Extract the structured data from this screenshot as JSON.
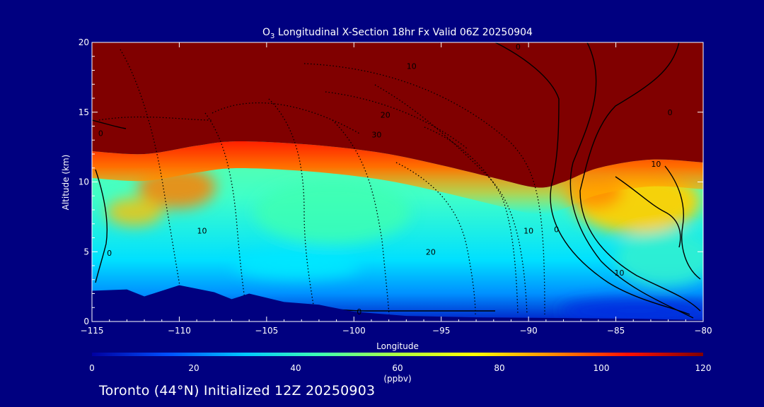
{
  "chart_data": {
    "type": "heatmap",
    "title": {
      "species": "O",
      "subscript": "3",
      "text": " Longitudinal X-Section 18hr  Fx Valid 06Z 20250904"
    },
    "xlabel": "Longitude",
    "ylabel": "Altitude (km)",
    "xlim": [
      -115,
      -80
    ],
    "ylim": [
      0,
      20
    ],
    "x_ticks": [
      -115,
      -110,
      -105,
      -100,
      -95,
      -90,
      -85,
      -80
    ],
    "x_tick_labels": [
      "−115",
      "−110",
      "−105",
      "−100",
      "−95",
      "−90",
      "−85",
      "−80"
    ],
    "y_ticks": [
      0,
      5,
      10,
      15,
      20
    ],
    "y_tick_labels": [
      "0",
      "5",
      "10",
      "15",
      "20"
    ],
    "colorbar": {
      "label": "(ppbv)",
      "min": 0,
      "max": 120,
      "ticks": [
        0,
        20,
        40,
        60,
        80,
        100,
        120
      ],
      "tick_labels": [
        "0",
        "20",
        "40",
        "60",
        "80",
        "100",
        "120"
      ],
      "colors": [
        "#0000a0",
        "#0050ff",
        "#00c8ff",
        "#40ffb0",
        "#b0ff40",
        "#ffff00",
        "#ff9000",
        "#ff1000",
        "#800000"
      ]
    },
    "tropopause_altitude_km": [
      {
        "lon": -115,
        "alt": 12.2
      },
      {
        "lon": -112,
        "alt": 12.0
      },
      {
        "lon": -109,
        "alt": 12.6
      },
      {
        "lon": -107,
        "alt": 12.9
      },
      {
        "lon": -104,
        "alt": 12.8
      },
      {
        "lon": -101,
        "alt": 12.5
      },
      {
        "lon": -98,
        "alt": 12.0
      },
      {
        "lon": -95,
        "alt": 11.2
      },
      {
        "lon": -92,
        "alt": 10.3
      },
      {
        "lon": -89.5,
        "alt": 9.6
      },
      {
        "lon": -88,
        "alt": 10.0
      },
      {
        "lon": -86,
        "alt": 11.0
      },
      {
        "lon": -83,
        "alt": 11.6
      },
      {
        "lon": -80,
        "alt": 11.4
      }
    ],
    "terrain_altitude_km": [
      {
        "lon": -115,
        "alt": 2.2
      },
      {
        "lon": -113,
        "alt": 2.3
      },
      {
        "lon": -112,
        "alt": 1.8
      },
      {
        "lon": -110,
        "alt": 2.6
      },
      {
        "lon": -108,
        "alt": 2.1
      },
      {
        "lon": -107,
        "alt": 1.6
      },
      {
        "lon": -106,
        "alt": 2.0
      },
      {
        "lon": -104,
        "alt": 1.4
      },
      {
        "lon": -102,
        "alt": 1.2
      },
      {
        "lon": -100,
        "alt": 0.7
      },
      {
        "lon": -97,
        "alt": 0.4
      },
      {
        "lon": -93,
        "alt": 0.3
      },
      {
        "lon": -88,
        "alt": 0.25
      },
      {
        "lon": -84,
        "alt": 0.2
      },
      {
        "lon": -80,
        "alt": 0.1
      }
    ],
    "contour_labels": [
      {
        "lon": -90.6,
        "alt": 19.7,
        "text": "0"
      },
      {
        "lon": -96.7,
        "alt": 18.3,
        "text": "10"
      },
      {
        "lon": -98.2,
        "alt": 14.8,
        "text": "20"
      },
      {
        "lon": -98.7,
        "alt": 13.4,
        "text": "30"
      },
      {
        "lon": -114.5,
        "alt": 13.5,
        "text": "0"
      },
      {
        "lon": -81.9,
        "alt": 15.0,
        "text": "0"
      },
      {
        "lon": -82.7,
        "alt": 11.3,
        "text": "10"
      },
      {
        "lon": -108.7,
        "alt": 6.5,
        "text": "10"
      },
      {
        "lon": -90.0,
        "alt": 6.5,
        "text": "10"
      },
      {
        "lon": -95.6,
        "alt": 5.0,
        "text": "20"
      },
      {
        "lon": -88.4,
        "alt": 6.6,
        "text": "0"
      },
      {
        "lon": -84.8,
        "alt": 3.5,
        "text": "10"
      },
      {
        "lon": -114.0,
        "alt": 4.9,
        "text": "0"
      },
      {
        "lon": -99.7,
        "alt": 0.7,
        "text": "0"
      }
    ]
  },
  "footer": "Toronto (44°N) Initialized 12Z 20250903"
}
